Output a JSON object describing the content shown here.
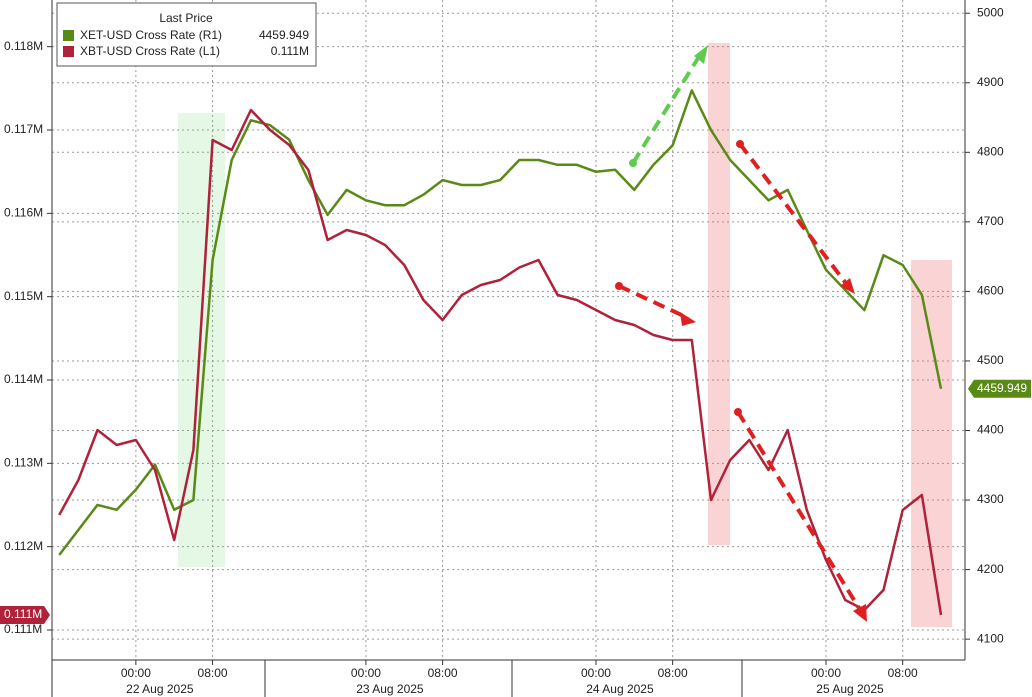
{
  "chart_data": {
    "type": "line",
    "legend_title": "Last Price",
    "x": [
      "2025-08-21T16:00",
      "2025-08-21T18:00",
      "2025-08-21T20:00",
      "2025-08-21T22:00",
      "2025-08-22T00:00",
      "2025-08-22T02:00",
      "2025-08-22T04:00",
      "2025-08-22T06:00",
      "2025-08-22T08:00",
      "2025-08-22T10:00",
      "2025-08-22T12:00",
      "2025-08-22T14:00",
      "2025-08-22T16:00",
      "2025-08-22T18:00",
      "2025-08-22T20:00",
      "2025-08-22T22:00",
      "2025-08-23T00:00",
      "2025-08-23T02:00",
      "2025-08-23T04:00",
      "2025-08-23T06:00",
      "2025-08-23T08:00",
      "2025-08-23T10:00",
      "2025-08-23T12:00",
      "2025-08-23T14:00",
      "2025-08-23T16:00",
      "2025-08-23T18:00",
      "2025-08-23T20:00",
      "2025-08-23T22:00",
      "2025-08-24T00:00",
      "2025-08-24T02:00",
      "2025-08-24T04:00",
      "2025-08-24T06:00",
      "2025-08-24T08:00",
      "2025-08-24T10:00",
      "2025-08-24T12:00",
      "2025-08-24T14:00",
      "2025-08-24T16:00",
      "2025-08-24T18:00",
      "2025-08-24T20:00",
      "2025-08-24T22:00",
      "2025-08-25T00:00",
      "2025-08-25T02:00",
      "2025-08-25T04:00",
      "2025-08-25T06:00",
      "2025-08-25T08:00",
      "2025-08-25T10:00",
      "2025-08-25T12:00"
    ],
    "series": [
      {
        "name": "XET-USD Cross Rate (R1)",
        "color": "#5a8a16",
        "axis": "y2",
        "last_label": "4459.949",
        "values": [
          4221,
          4257,
          4293,
          4286,
          4315,
          4351,
          4286,
          4300,
          4645,
          4789,
          4846,
          4839,
          4818,
          4760,
          4710,
          4746,
          4731,
          4724,
          4724,
          4739,
          4760,
          4753,
          4753,
          4760,
          4789,
          4789,
          4782,
          4782,
          4772,
          4775,
          4746,
          4782,
          4810,
          4889,
          4832,
          4789,
          4760,
          4731,
          4746,
          4688,
          4631,
          4602,
          4573,
          4652,
          4638,
          4595,
          4459.949
        ]
      },
      {
        "name": "XBT-USD Cross Rate (L1)",
        "color": "#b0223a",
        "axis": "y",
        "last_label": "0.111M",
        "values": [
          112380,
          112800,
          113400,
          113220,
          113280,
          112920,
          112080,
          113160,
          116880,
          116760,
          117240,
          117000,
          116820,
          116520,
          115680,
          115800,
          115740,
          115620,
          115380,
          114960,
          114720,
          115020,
          115140,
          115200,
          115350,
          115440,
          115020,
          114960,
          114840,
          114720,
          114660,
          114540,
          114480,
          114480,
          112560,
          113040,
          113280,
          112920,
          113400,
          112440,
          111840,
          111360,
          111240,
          111480,
          112440,
          112620,
          111180
        ]
      }
    ],
    "xlim": [
      "2025-08-21T15:15",
      "2025-08-25T14:30"
    ],
    "xticks": [
      {
        "value": "2025-08-22T00:00",
        "label": "00:00"
      },
      {
        "value": "2025-08-22T08:00",
        "label": "08:00"
      },
      {
        "value": "2025-08-23T00:00",
        "label": "00:00"
      },
      {
        "value": "2025-08-23T08:00",
        "label": "08:00"
      },
      {
        "value": "2025-08-24T00:00",
        "label": "00:00"
      },
      {
        "value": "2025-08-24T08:00",
        "label": "08:00"
      },
      {
        "value": "2025-08-25T00:00",
        "label": "00:00"
      },
      {
        "value": "2025-08-25T08:00",
        "label": "08:00"
      }
    ],
    "day_labels": [
      "22 Aug 2025",
      "23 Aug 2025",
      "24 Aug 2025",
      "25 Aug 2025"
    ],
    "ylim": [
      110640,
      118560
    ],
    "yticks": [
      {
        "value": 111000,
        "label": "0.111M"
      },
      {
        "value": 112000,
        "label": "0.112M"
      },
      {
        "value": 113000,
        "label": "0.113M"
      },
      {
        "value": 114000,
        "label": "0.114M"
      },
      {
        "value": 115000,
        "label": "0.115M"
      },
      {
        "value": 116000,
        "label": "0.116M"
      },
      {
        "value": 117000,
        "label": "0.117M"
      },
      {
        "value": 118000,
        "label": "0.118M"
      }
    ],
    "y2lim": [
      4070,
      5019
    ],
    "y2ticks": [
      4100,
      4200,
      4300,
      4400,
      4500,
      4600,
      4700,
      4800,
      4900,
      5000
    ],
    "grid": true
  }
}
